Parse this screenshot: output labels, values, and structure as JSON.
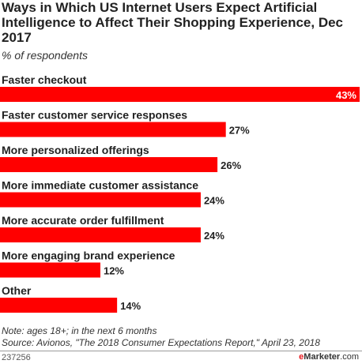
{
  "chart_data": {
    "type": "bar",
    "orientation": "horizontal",
    "title": "Ways in Which US Internet Users Expect Artificial Intelligence to Affect Their Shopping Experience, Dec 2017",
    "subtitle": "% of respondents",
    "categories": [
      "Faster checkout",
      "Faster customer service responses",
      "More personalized offerings",
      "More immediate customer assistance",
      "More accurate order fulfillment",
      "More engaging brand experience",
      "Other"
    ],
    "values": [
      43,
      27,
      26,
      24,
      24,
      12,
      14
    ],
    "value_labels": [
      "43%",
      "27%",
      "26%",
      "24%",
      "24%",
      "12%",
      "14%"
    ],
    "bar_color": "#ff0000",
    "xlim": [
      0,
      43
    ],
    "grid": false
  },
  "footer": {
    "note": "Note: ages 18+; in the next 6 months",
    "source": "Source: Avionos, \"The 2018 Consumer Expectations Report,\" April 23, 2018",
    "chart_id": "237256",
    "brand_e": "e",
    "brand_rest": "Marketer",
    "brand_suffix": ".com"
  }
}
